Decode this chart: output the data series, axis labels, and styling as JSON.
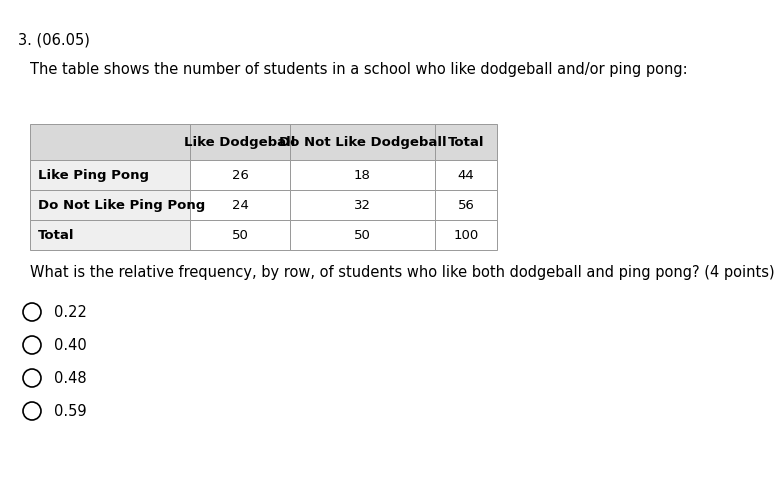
{
  "question_number": "3. (06.05)",
  "intro_text": "The table shows the number of students in a school who like dodgeball and/or ping pong:",
  "col_headers": [
    "",
    "Like Dodgeball",
    "Do Not Like Dodgeball",
    "Total"
  ],
  "rows": [
    [
      "Like Ping Pong",
      "26",
      "18",
      "44"
    ],
    [
      "Do Not Like Ping Pong",
      "24",
      "32",
      "56"
    ],
    [
      "Total",
      "50",
      "50",
      "100"
    ]
  ],
  "question_text": "What is the relative frequency, by row, of students who like both dodgeball and ping pong? (4 points)",
  "choices": [
    "0.22",
    "0.40",
    "0.48",
    "0.59"
  ],
  "bg_color": "#ffffff",
  "header_bg": "#d9d9d9",
  "row_label_bg": "#efefef",
  "border_color": "#999999",
  "text_color": "#000000",
  "font_size_title": 10.5,
  "font_size_body": 10.5,
  "font_size_table": 9.5
}
